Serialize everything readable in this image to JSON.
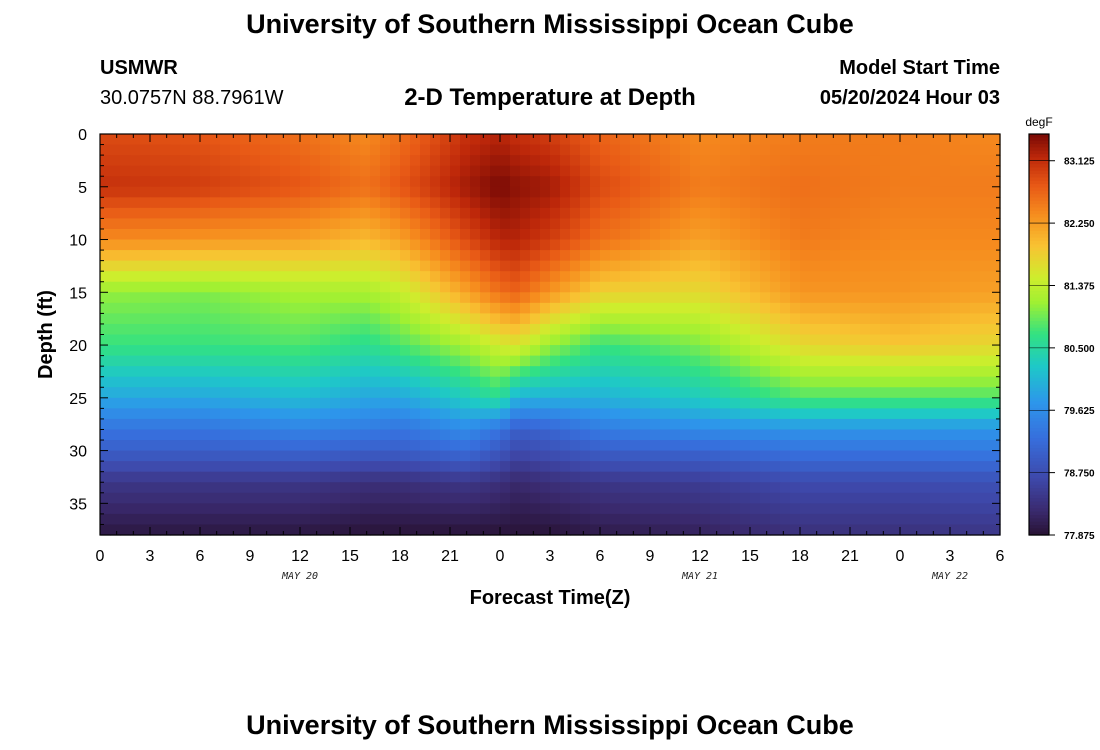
{
  "header": {
    "title": "University of Southern Mississippi Ocean Cube",
    "station": "USMWR",
    "coords": "30.0757N  88.7961W",
    "subtitle": "2-D Temperature at Depth",
    "model_label": "Model Start Time",
    "model_time": "05/20/2024 Hour 03"
  },
  "footer": {
    "title": "University of Southern Mississippi Ocean Cube"
  },
  "chart_data": {
    "type": "heatmap",
    "title": "2-D Temperature at Depth",
    "xlabel": "Forecast Time(Z)",
    "ylabel": "Depth (ft)",
    "x_tick_labels": [
      "0",
      "3",
      "6",
      "9",
      "12",
      "15",
      "18",
      "21",
      "0",
      "3",
      "6",
      "9",
      "12",
      "15",
      "18",
      "21",
      "0",
      "3",
      "6"
    ],
    "x_ticks_hours": [
      0,
      3,
      6,
      9,
      12,
      15,
      18,
      21,
      24,
      27,
      30,
      33,
      36,
      39,
      42,
      45,
      48,
      51,
      54
    ],
    "date_labels": [
      {
        "hour": 12,
        "text": "MAY 20"
      },
      {
        "hour": 36,
        "text": "MAY 21"
      },
      {
        "hour": 51,
        "text": "MAY 22"
      }
    ],
    "xlim": [
      0,
      54
    ],
    "ylim": [
      0,
      38
    ],
    "y_ticks": [
      0,
      5,
      10,
      15,
      20,
      25,
      30,
      35
    ],
    "colorbar": {
      "unit": "degF",
      "min": 77.875,
      "max": 83.5,
      "tick_values": [
        83.125,
        82.25,
        81.375,
        80.5,
        79.625,
        78.75,
        77.875
      ],
      "tick_labels": [
        "83.125",
        "82.250",
        "81.375",
        "80.500",
        "79.625",
        "78.750",
        "77.875"
      ]
    },
    "grid_hours": [
      0,
      6,
      12,
      16,
      18,
      22,
      24,
      25,
      27,
      30,
      36,
      42,
      48,
      54
    ],
    "grid_depths": [
      0,
      5,
      10,
      15,
      20,
      25,
      28,
      30,
      33,
      38
    ],
    "values": [
      [
        82.9,
        82.8,
        82.6,
        82.4,
        82.6,
        83.1,
        83.2,
        83.1,
        83.0,
        82.7,
        82.4,
        82.5,
        82.5,
        82.4
      ],
      [
        83.1,
        83.0,
        82.8,
        82.6,
        82.8,
        83.3,
        83.5,
        83.4,
        83.3,
        82.9,
        82.5,
        82.6,
        82.5,
        82.5
      ],
      [
        82.4,
        82.3,
        82.2,
        82.0,
        82.2,
        82.9,
        83.2,
        83.2,
        83.0,
        82.6,
        82.2,
        82.5,
        82.4,
        82.4
      ],
      [
        81.1,
        81.0,
        81.2,
        81.2,
        81.4,
        82.2,
        82.6,
        82.7,
        82.3,
        81.8,
        81.7,
        82.3,
        82.3,
        82.2
      ],
      [
        80.7,
        80.7,
        80.8,
        80.6,
        80.8,
        81.2,
        81.5,
        81.6,
        81.1,
        80.7,
        81.0,
        81.7,
        81.9,
        81.7
      ],
      [
        79.9,
        79.9,
        80.1,
        79.9,
        79.9,
        80.3,
        80.6,
        80.0,
        80.0,
        80.0,
        80.3,
        80.8,
        80.8,
        80.8
      ],
      [
        79.3,
        79.3,
        79.5,
        79.4,
        79.3,
        79.6,
        79.3,
        79.0,
        79.1,
        79.4,
        79.6,
        79.7,
        79.7,
        79.7
      ],
      [
        79.0,
        79.0,
        79.1,
        79.0,
        79.0,
        79.2,
        78.9,
        78.7,
        78.8,
        79.0,
        79.1,
        79.3,
        79.3,
        79.4
      ],
      [
        78.4,
        78.4,
        78.4,
        78.3,
        78.3,
        78.4,
        78.3,
        78.2,
        78.3,
        78.4,
        78.5,
        78.7,
        78.7,
        78.8
      ],
      [
        77.95,
        77.95,
        77.95,
        77.9,
        77.9,
        77.9,
        77.9,
        77.9,
        77.9,
        78.0,
        78.1,
        78.3,
        78.3,
        78.4
      ]
    ]
  }
}
